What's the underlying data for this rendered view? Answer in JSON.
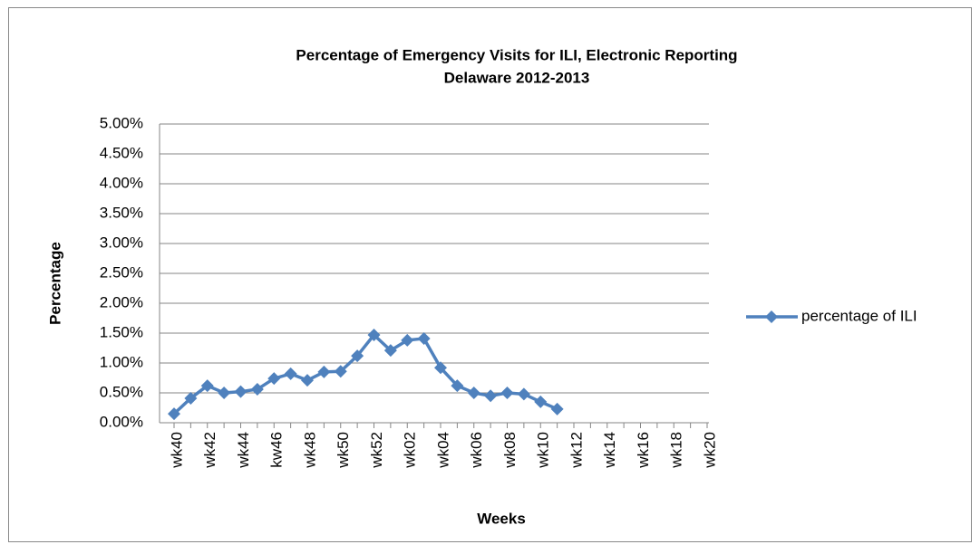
{
  "chart_data": {
    "type": "line",
    "title": [
      "Percentage of Emergency Visits for ILI, Electronic Reporting",
      "Delaware 2012-2013"
    ],
    "x_label": "Weeks",
    "y_label": "Percentage",
    "categories": [
      "wk40",
      null,
      "wk42",
      null,
      "wk44",
      null,
      "kw46",
      null,
      "wk48",
      null,
      "wk50",
      null,
      "wk52",
      null,
      "wk02",
      null,
      "wk04",
      null,
      "wk06",
      null,
      "wk08",
      null,
      "wk10",
      null,
      "wk12",
      null,
      "wk14",
      null,
      "wk16",
      null,
      "wk18",
      null,
      "wk20"
    ],
    "series": [
      {
        "name": "percentage of ILI",
        "color": "#4f81bd",
        "values": [
          0.15,
          0.41,
          0.62,
          0.5,
          0.52,
          0.56,
          0.74,
          0.82,
          0.71,
          0.85,
          0.86,
          1.12,
          1.47,
          1.21,
          1.38,
          1.41,
          0.92,
          0.62,
          0.5,
          0.45,
          0.5,
          0.48,
          0.35,
          0.23,
          null,
          null,
          null,
          null,
          null,
          null,
          null,
          null,
          null
        ]
      }
    ],
    "ylim": [
      0,
      5
    ],
    "yticks": [
      {
        "value": 0,
        "label": "0.00%"
      },
      {
        "value": 0.5,
        "label": "0.50%"
      },
      {
        "value": 1,
        "label": "1.00%"
      },
      {
        "value": 1.5,
        "label": "1.50%"
      },
      {
        "value": 2,
        "label": "2.00%"
      },
      {
        "value": 2.5,
        "label": "2.50%"
      },
      {
        "value": 3,
        "label": "3.00%"
      },
      {
        "value": 3.5,
        "label": "3.50%"
      },
      {
        "value": 4,
        "label": "4.00%"
      },
      {
        "value": 4.5,
        "label": "4.50%"
      },
      {
        "value": 5,
        "label": "5.00%"
      }
    ],
    "grid": true,
    "legend": "right"
  }
}
